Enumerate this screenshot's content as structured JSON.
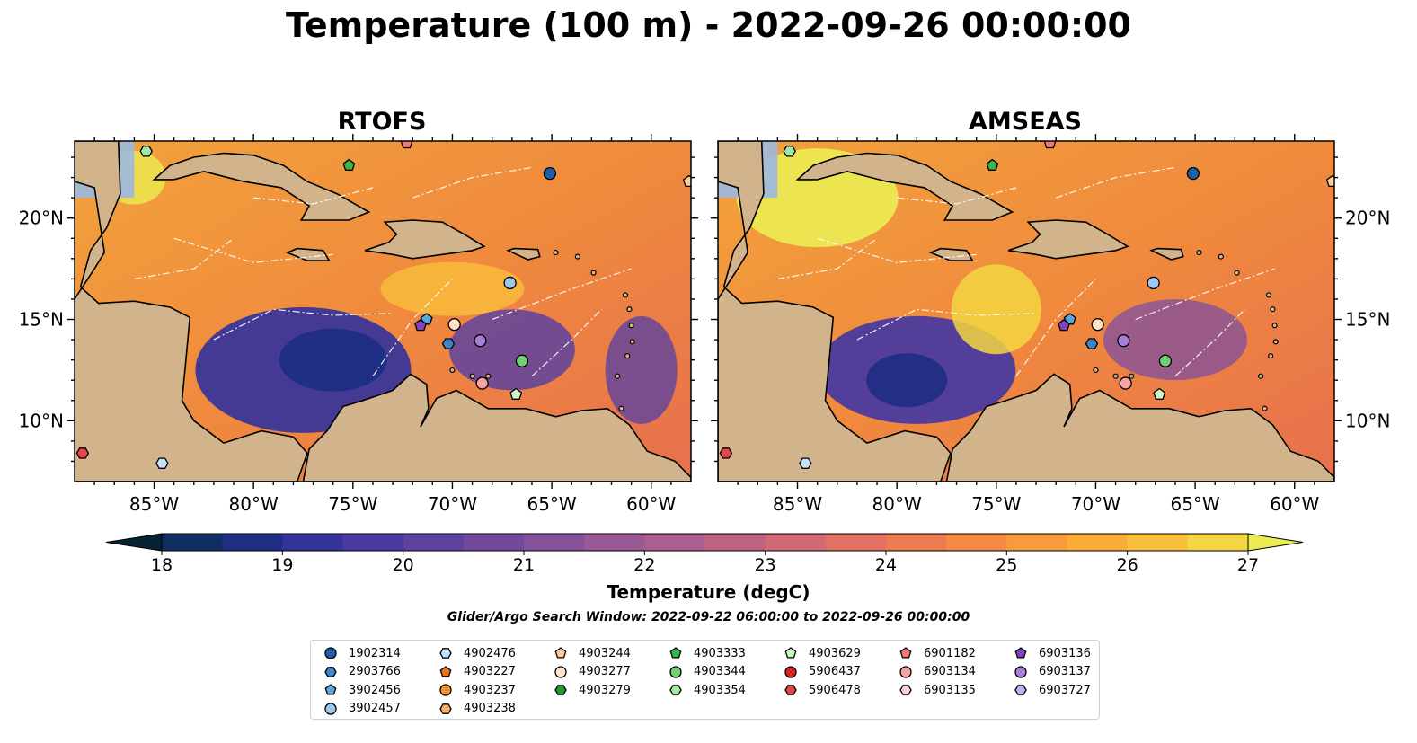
{
  "title": "Temperature (100 m) - 2022-09-26 00:00:00",
  "panels": [
    {
      "title": "RTOFS"
    },
    {
      "title": "AMSEAS"
    }
  ],
  "axes": {
    "x_ticks": [
      "85°W",
      "80°W",
      "75°W",
      "70°W",
      "65°W",
      "60°W"
    ],
    "x_lon": [
      -85,
      -80,
      -75,
      -70,
      -65,
      -60
    ],
    "y_ticks": [
      "20°N",
      "15°N",
      "10°N"
    ],
    "y_lat": [
      20,
      15,
      10
    ],
    "lon_range": [
      -89,
      -58
    ],
    "lat_range": [
      7,
      23.8
    ]
  },
  "colorbar": {
    "label": "Temperature (degC)",
    "ticks": [
      "18",
      "19",
      "20",
      "21",
      "22",
      "23",
      "24",
      "25",
      "26",
      "27"
    ],
    "range": [
      18,
      27
    ],
    "extend": "both",
    "colors": [
      "#062233",
      "#0f2f63",
      "#1e2e84",
      "#34339a",
      "#4a3a9e",
      "#5e429e",
      "#724a9c",
      "#86519a",
      "#9a5895",
      "#ac5e8e",
      "#be6483",
      "#d06a76",
      "#e07163",
      "#ec7b52",
      "#f48a44",
      "#f89b3c",
      "#fbad3a",
      "#f9c13b",
      "#f3d641",
      "#ebec52"
    ]
  },
  "search_window": "Glider/Argo Search Window: 2022-09-22 06:00:00 to 2022-09-26 00:00:00",
  "legend": [
    {
      "label": "1902314",
      "color": "#1f5fa8",
      "shape": "circle"
    },
    {
      "label": "2903766",
      "color": "#3a86c8",
      "shape": "hexagon"
    },
    {
      "label": "3902456",
      "color": "#5aa6e0",
      "shape": "pentagon"
    },
    {
      "label": "3902457",
      "color": "#9cc8ef",
      "shape": "circle"
    },
    {
      "label": "4902476",
      "color": "#c6e2f8",
      "shape": "hexagon"
    },
    {
      "label": "4903227",
      "color": "#ef6f1a",
      "shape": "pentagon"
    },
    {
      "label": "4903237",
      "color": "#f7922f",
      "shape": "circle"
    },
    {
      "label": "4903238",
      "color": "#fbb26a",
      "shape": "hexagon"
    },
    {
      "label": "4903244",
      "color": "#fccb96",
      "shape": "pentagon"
    },
    {
      "label": "4903277",
      "color": "#fde3c8",
      "shape": "circle"
    },
    {
      "label": "4903279",
      "color": "#1f9a2b",
      "shape": "hexagon"
    },
    {
      "label": "4903333",
      "color": "#3cb44b",
      "shape": "pentagon"
    },
    {
      "label": "4903344",
      "color": "#6fcf74",
      "shape": "circle"
    },
    {
      "label": "4903354",
      "color": "#a4e6a4",
      "shape": "hexagon"
    },
    {
      "label": "4903629",
      "color": "#cdf6c7",
      "shape": "pentagon"
    },
    {
      "label": "5906437",
      "color": "#d62728",
      "shape": "circle"
    },
    {
      "label": "5906478",
      "color": "#e2464a",
      "shape": "hexagon"
    },
    {
      "label": "6901182",
      "color": "#ee7a7b",
      "shape": "pentagon"
    },
    {
      "label": "6903134",
      "color": "#f6a3a3",
      "shape": "circle"
    },
    {
      "label": "6903135",
      "color": "#fbd0cf",
      "shape": "hexagon"
    },
    {
      "label": "6903136",
      "color": "#8043b8",
      "shape": "pentagon"
    },
    {
      "label": "6903137",
      "color": "#a67fd6",
      "shape": "circle"
    },
    {
      "label": "6903727",
      "color": "#c9b1ec",
      "shape": "hexagon"
    }
  ],
  "markers": [
    {
      "id": "1902314",
      "lon": -65.1,
      "lat": 22.2
    },
    {
      "id": "3902457",
      "lon": -67.1,
      "lat": 16.8
    },
    {
      "id": "3902456",
      "lon": -71.3,
      "lat": 15.0
    },
    {
      "id": "6903136",
      "lon": -71.6,
      "lat": 14.7
    },
    {
      "id": "4903277",
      "lon": -69.9,
      "lat": 14.75
    },
    {
      "id": "2903766",
      "lon": -70.2,
      "lat": 13.8
    },
    {
      "id": "6903137",
      "lon": -68.6,
      "lat": 13.95
    },
    {
      "id": "4903344",
      "lon": -66.5,
      "lat": 12.95
    },
    {
      "id": "6903134",
      "lon": -68.5,
      "lat": 11.85
    },
    {
      "id": "4903629",
      "lon": -66.8,
      "lat": 11.3
    },
    {
      "id": "4903354",
      "lon": -85.4,
      "lat": 23.3
    },
    {
      "id": "4903333",
      "lon": -75.2,
      "lat": 22.6
    },
    {
      "id": "6901182",
      "lon": -72.3,
      "lat": 23.7
    },
    {
      "id": "4903244",
      "lon": -58.1,
      "lat": 21.8
    },
    {
      "id": "5906478",
      "lon": -88.6,
      "lat": 8.4
    },
    {
      "id": "4902476",
      "lon": -84.6,
      "lat": 7.9
    }
  ]
}
